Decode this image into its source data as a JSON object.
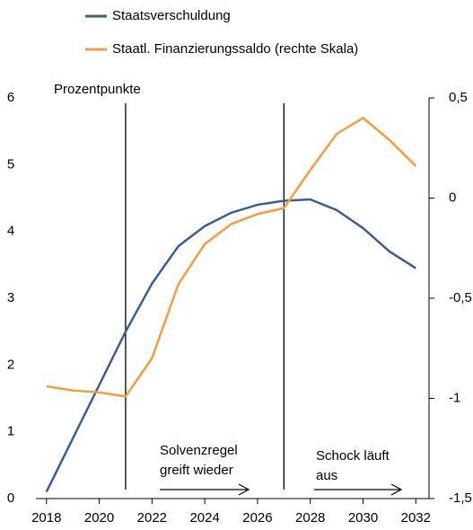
{
  "chart_data": {
    "type": "line",
    "y_label": "Prozentpunkte",
    "x": [
      2018,
      2019,
      2020,
      2021,
      2022,
      2023,
      2024,
      2025,
      2026,
      2027,
      2028,
      2029,
      2030,
      2031,
      2032
    ],
    "xlim": [
      2017.6,
      2032.5
    ],
    "xticks": [
      2018,
      2020,
      2022,
      2024,
      2026,
      2028,
      2030,
      2032
    ],
    "ylim": [
      0,
      6
    ],
    "yticks": [
      0,
      1,
      2,
      3,
      4,
      5,
      6
    ],
    "y2lim": [
      -1.5,
      0.5
    ],
    "y2ticks": [
      {
        "value": -1.5,
        "label": "-1,5"
      },
      -1,
      {
        "value": -0.5,
        "label": "-0,5"
      },
      0,
      {
        "value": 0.5,
        "label": "0,5"
      }
    ],
    "series": [
      {
        "name": "Staatsverschuldung",
        "color": "#3a5f8f",
        "values": [
          0.1,
          0.9,
          1.7,
          2.5,
          3.22,
          3.78,
          4.08,
          4.28,
          4.4,
          4.46,
          4.48,
          4.32,
          4.05,
          3.7,
          3.45
        ]
      },
      {
        "name": "Staatl. Finanzierungssaldo (rechte Skala)",
        "color": "#f59d3d",
        "axis": "y2",
        "values": [
          -0.94,
          -0.96,
          -0.97,
          -0.99,
          -0.8,
          -0.43,
          -0.23,
          -0.13,
          -0.08,
          -0.05,
          0.14,
          0.32,
          0.4,
          0.29,
          0.16
        ]
      }
    ],
    "vlines": [
      2021,
      2027
    ],
    "annotations": [
      {
        "lines": [
          "Solvenzregel",
          "greift wieder"
        ]
      },
      {
        "lines": [
          "Schock läuft",
          "aus"
        ]
      }
    ]
  }
}
